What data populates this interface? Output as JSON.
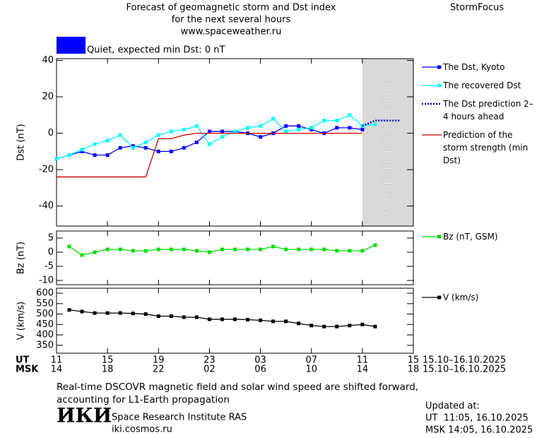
{
  "header": {
    "title_lines": [
      "Forecast of geomagnetic storm and Dst index",
      "for the next several hours",
      "www.spaceweather.ru"
    ],
    "brand": "StormFocus"
  },
  "status": {
    "label": "Quiet, expected min Dst: 0 nT",
    "color": "#0000ff"
  },
  "chart_data": [
    {
      "type": "line",
      "ylabel": "Dst (nT)",
      "ylim": [
        -51,
        41
      ],
      "yticks": [
        -40,
        -20,
        0,
        20,
        40
      ],
      "prediction_region": [
        24,
        28
      ],
      "prediction_label": "PREDICTION",
      "prediction_color": "#d9d9d9",
      "series": [
        {
          "name": "The Dst, Kyoto",
          "color": "#0000ff",
          "marker": true,
          "x": [
            0,
            1,
            2,
            3,
            4,
            5,
            6,
            7,
            8,
            9,
            10,
            11,
            12,
            13,
            14,
            15,
            16,
            17,
            18,
            19,
            20,
            21,
            22,
            23,
            24
          ],
          "values": [
            -14,
            -12,
            -10,
            -12,
            -12,
            -8,
            -7,
            -8,
            -10,
            -10,
            -8,
            -5,
            1,
            1,
            1,
            0,
            -2,
            0,
            4,
            4,
            2,
            0,
            3,
            3,
            2
          ]
        },
        {
          "name": "The recovered Dst",
          "color": "#00ffff",
          "marker": true,
          "x": [
            0,
            1,
            2,
            3,
            4,
            5,
            6,
            7,
            8,
            9,
            10,
            11,
            12,
            13,
            14,
            15,
            16,
            17,
            18,
            19,
            20,
            21,
            22,
            23,
            24,
            25
          ],
          "values": [
            -14,
            -12,
            -9,
            -6,
            -4,
            -1,
            -8,
            -5,
            -1,
            1,
            2,
            4,
            -6,
            -2,
            1,
            3,
            4,
            8,
            1,
            2,
            3,
            7,
            7,
            10,
            4,
            5
          ]
        },
        {
          "name": "The Dst prediction 2–4 hours ahead",
          "color": "#0000cc",
          "dotted": true,
          "x": [
            24,
            25,
            27
          ],
          "values": [
            4,
            7,
            7
          ]
        },
        {
          "name": "Prediction of the storm strength (min Dst)",
          "color": "#cc0000",
          "x": [
            0,
            7,
            8,
            9,
            10,
            11,
            24
          ],
          "values": [
            -24,
            -24,
            -3,
            -3,
            -1,
            0,
            0
          ]
        }
      ]
    },
    {
      "type": "line",
      "ylabel": "Bz (nT)",
      "ylim": [
        -11.5,
        7.5
      ],
      "yticks": [
        -10,
        -5,
        0,
        5
      ],
      "series": [
        {
          "name": "Bz (nT, GSM)",
          "color": "#00dd00",
          "marker": true,
          "x": [
            1,
            2,
            3,
            4,
            5,
            6,
            7,
            8,
            9,
            10,
            11,
            12,
            13,
            14,
            15,
            16,
            17,
            18,
            19,
            20,
            21,
            22,
            23,
            24,
            25
          ],
          "values": [
            2,
            -1,
            0,
            1,
            1,
            0.5,
            0.5,
            1,
            1,
            1,
            0.5,
            0,
            1,
            1,
            1,
            1,
            2,
            1,
            1,
            1,
            1,
            0.5,
            0.5,
            0.5,
            2.5
          ]
        }
      ]
    },
    {
      "type": "line",
      "ylabel": "V (km/s)",
      "ylim": [
        312,
        624
      ],
      "yticks": [
        350,
        400,
        450,
        500,
        550,
        600
      ],
      "xlim": [
        0,
        28
      ],
      "xlabel": "UT",
      "xdate": "15.10–16.10.2025",
      "xticks": [
        {
          "value": 0,
          "label": "11"
        },
        {
          "value": 4,
          "label": "15"
        },
        {
          "value": 8,
          "label": "19"
        },
        {
          "value": 12,
          "label": "23"
        },
        {
          "value": 16,
          "label": "03"
        },
        {
          "value": 20,
          "label": "07"
        },
        {
          "value": 24,
          "label": "11"
        },
        {
          "value": 28,
          "label": "15"
        }
      ],
      "x2label": "MSK",
      "x2date": "15.10–16.10.2025",
      "x2ticks": [
        {
          "value": 0,
          "label": "14"
        },
        {
          "value": 4,
          "label": "18"
        },
        {
          "value": 8,
          "label": "22"
        },
        {
          "value": 12,
          "label": "02"
        },
        {
          "value": 16,
          "label": "06"
        },
        {
          "value": 20,
          "label": "10"
        },
        {
          "value": 24,
          "label": "14"
        },
        {
          "value": 28,
          "label": "18"
        }
      ],
      "series": [
        {
          "name": "V (km/s)",
          "color": "#000000",
          "marker": true,
          "x": [
            1,
            2,
            3,
            4,
            5,
            6,
            7,
            8,
            9,
            10,
            11,
            12,
            13,
            14,
            15,
            16,
            17,
            18,
            19,
            20,
            21,
            22,
            23,
            24,
            25
          ],
          "values": [
            520,
            512,
            505,
            505,
            505,
            503,
            500,
            490,
            490,
            485,
            485,
            475,
            475,
            475,
            473,
            470,
            465,
            465,
            455,
            445,
            440,
            440,
            445,
            450,
            440
          ]
        }
      ]
    }
  ],
  "footer": {
    "note": "Real-time DSCOVR magnetic field and solar wind speed are shifted forward, accounting for L1-Earth propagation",
    "logo": "ИКИ",
    "institute": "Space Research Institute RAS",
    "url": "iki.cosmos.ru",
    "updated_label": "Updated at:",
    "updated_ut": "UT  11:05, 16.10.2025",
    "updated_msk": "MSK 14:05, 16.10.2025"
  }
}
